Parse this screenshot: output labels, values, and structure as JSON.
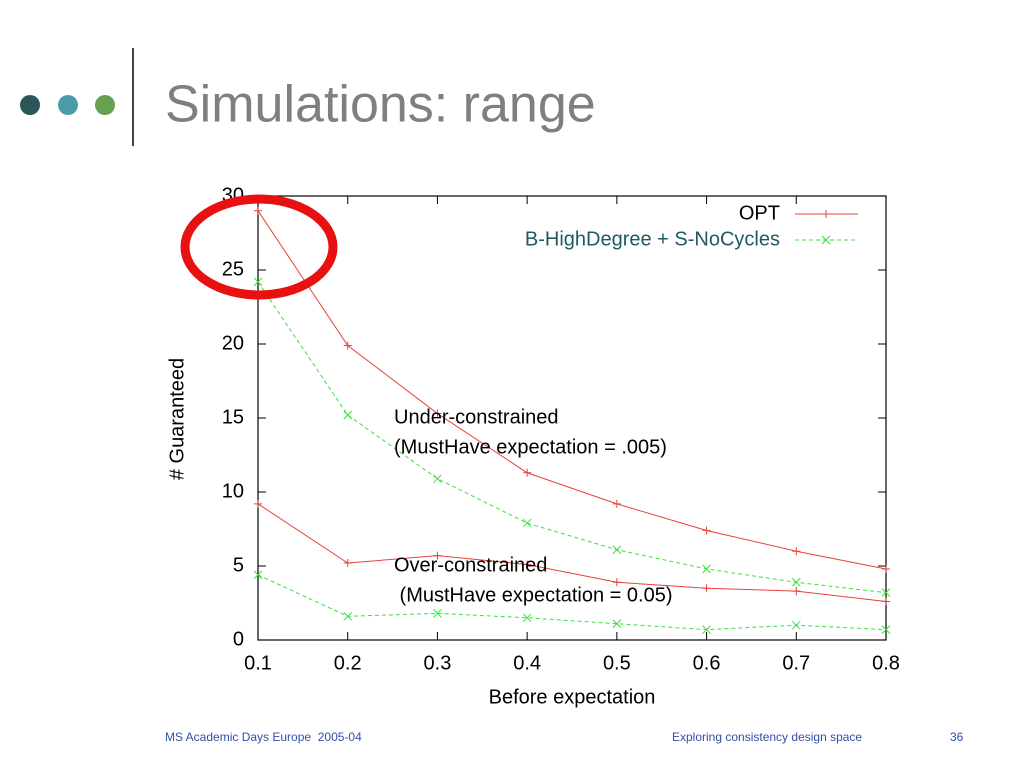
{
  "slide": {
    "title": "Simulations: range",
    "footer_left": "MS Academic Days Europe  2005-04",
    "footer_center": "Exploring consistency design space",
    "page_number": "36"
  },
  "chart_data": {
    "type": "line",
    "x": [
      0.1,
      0.2,
      0.3,
      0.4,
      0.5,
      0.6,
      0.7,
      0.8
    ],
    "xlim": [
      0.1,
      0.8
    ],
    "ylim": [
      0,
      30
    ],
    "xticks": [
      0.1,
      0.2,
      0.3,
      0.4,
      0.5,
      0.6,
      0.7,
      0.8
    ],
    "yticks": [
      0,
      5,
      10,
      15,
      20,
      25,
      30
    ],
    "xlabel": "Before expectation",
    "ylabel": "# Guaranteed",
    "legend": [
      {
        "name": "OPT",
        "color": "#e8413a",
        "marker": "+"
      },
      {
        "name": "B-HighDegree + S-NoCycles",
        "color": "#3ce03c",
        "marker": "x"
      }
    ],
    "series": [
      {
        "color": "#e8413a",
        "marker": "+",
        "values": [
          29,
          19.9,
          15.3,
          11.3,
          9.2,
          7.4,
          6.0,
          4.8
        ]
      },
      {
        "color": "#3ce03c",
        "marker": "x",
        "dashed": true,
        "values": [
          24.2,
          15.2,
          10.9,
          7.9,
          6.1,
          4.8,
          3.9,
          3.2
        ]
      },
      {
        "color": "#e8413a",
        "marker": "+",
        "values": [
          9.2,
          5.2,
          5.7,
          5.1,
          3.9,
          3.5,
          3.3,
          2.6
        ]
      },
      {
        "color": "#3ce03c",
        "marker": "x",
        "dashed": true,
        "values": [
          4.4,
          1.6,
          1.8,
          1.5,
          1.1,
          0.7,
          1.0,
          0.7
        ]
      }
    ],
    "annotations": [
      {
        "lines": [
          "Under-constrained",
          "(MustHave expectation = .005)"
        ]
      },
      {
        "lines": [
          "Over-constrained",
          " (MustHave expectation = 0.05)"
        ]
      }
    ]
  }
}
